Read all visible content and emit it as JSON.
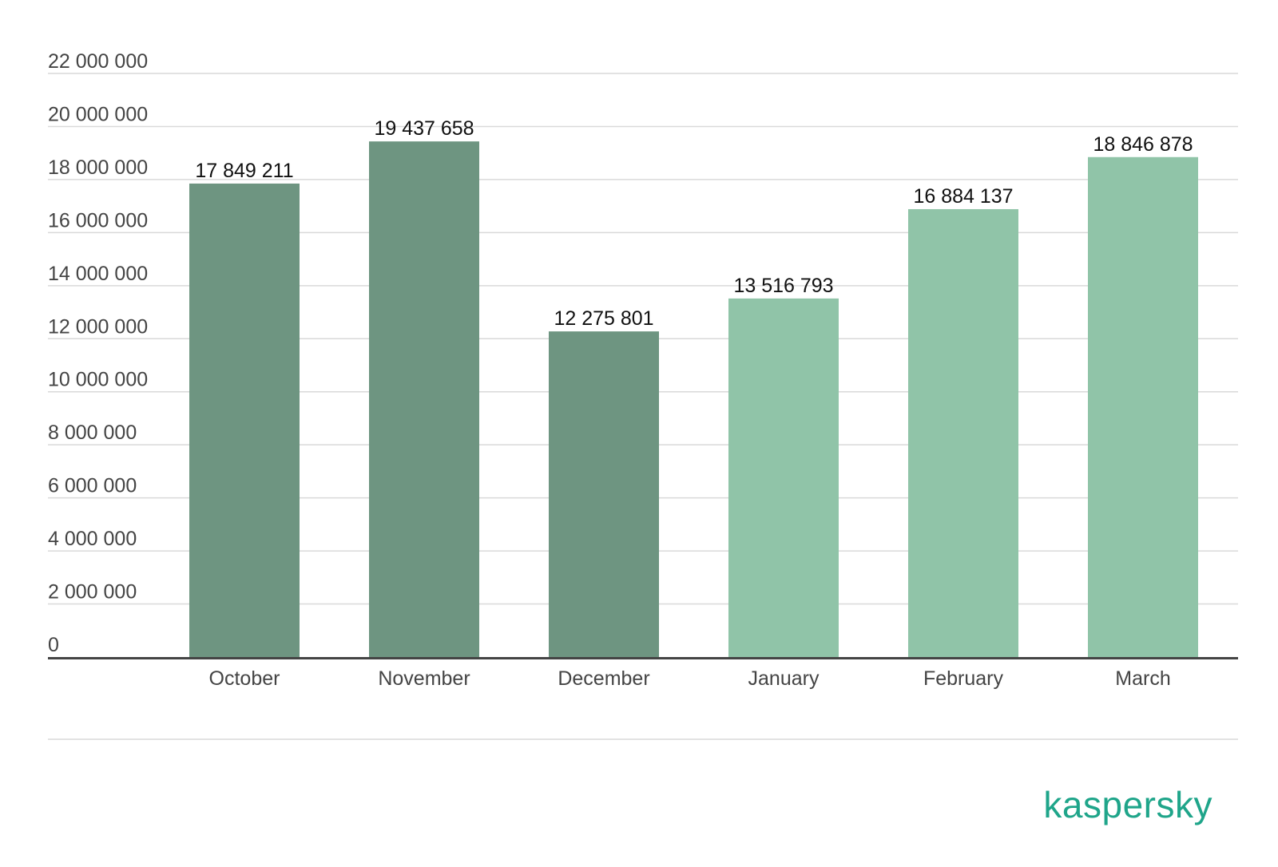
{
  "chart_data": {
    "type": "bar",
    "categories": [
      "October",
      "November",
      "December",
      "January",
      "February",
      "March"
    ],
    "values": [
      17849211,
      19437658,
      12275801,
      13516793,
      16884137,
      18846878
    ],
    "data_labels": [
      "17 849 211",
      "19 437 658",
      "12 275 801",
      "13 516 793",
      "16 884 137",
      "18 846 878"
    ],
    "y_ticks": [
      0,
      2000000,
      4000000,
      6000000,
      8000000,
      10000000,
      12000000,
      14000000,
      16000000,
      18000000,
      20000000,
      22000000
    ],
    "y_tick_labels": [
      "0",
      "2 000 000",
      "4 000 000",
      "6 000 000",
      "8 000 000",
      "10 000 000",
      "12 000 000",
      "14 000 000",
      "16 000 000",
      "18 000 000",
      "20 000 000",
      "22 000 000"
    ],
    "ylim": [
      0,
      22000000
    ],
    "title": "",
    "xlabel": "",
    "ylabel": "",
    "grid": true,
    "bar_colors": [
      "#6e9581",
      "#6e9581",
      "#6e9581",
      "#90c4a8",
      "#90c4a8",
      "#90c4a8"
    ],
    "grid_color": "#d9d9d9",
    "axis_color": "#444444"
  },
  "logo": {
    "text": "kaspersky",
    "color": "#1fa58a"
  }
}
